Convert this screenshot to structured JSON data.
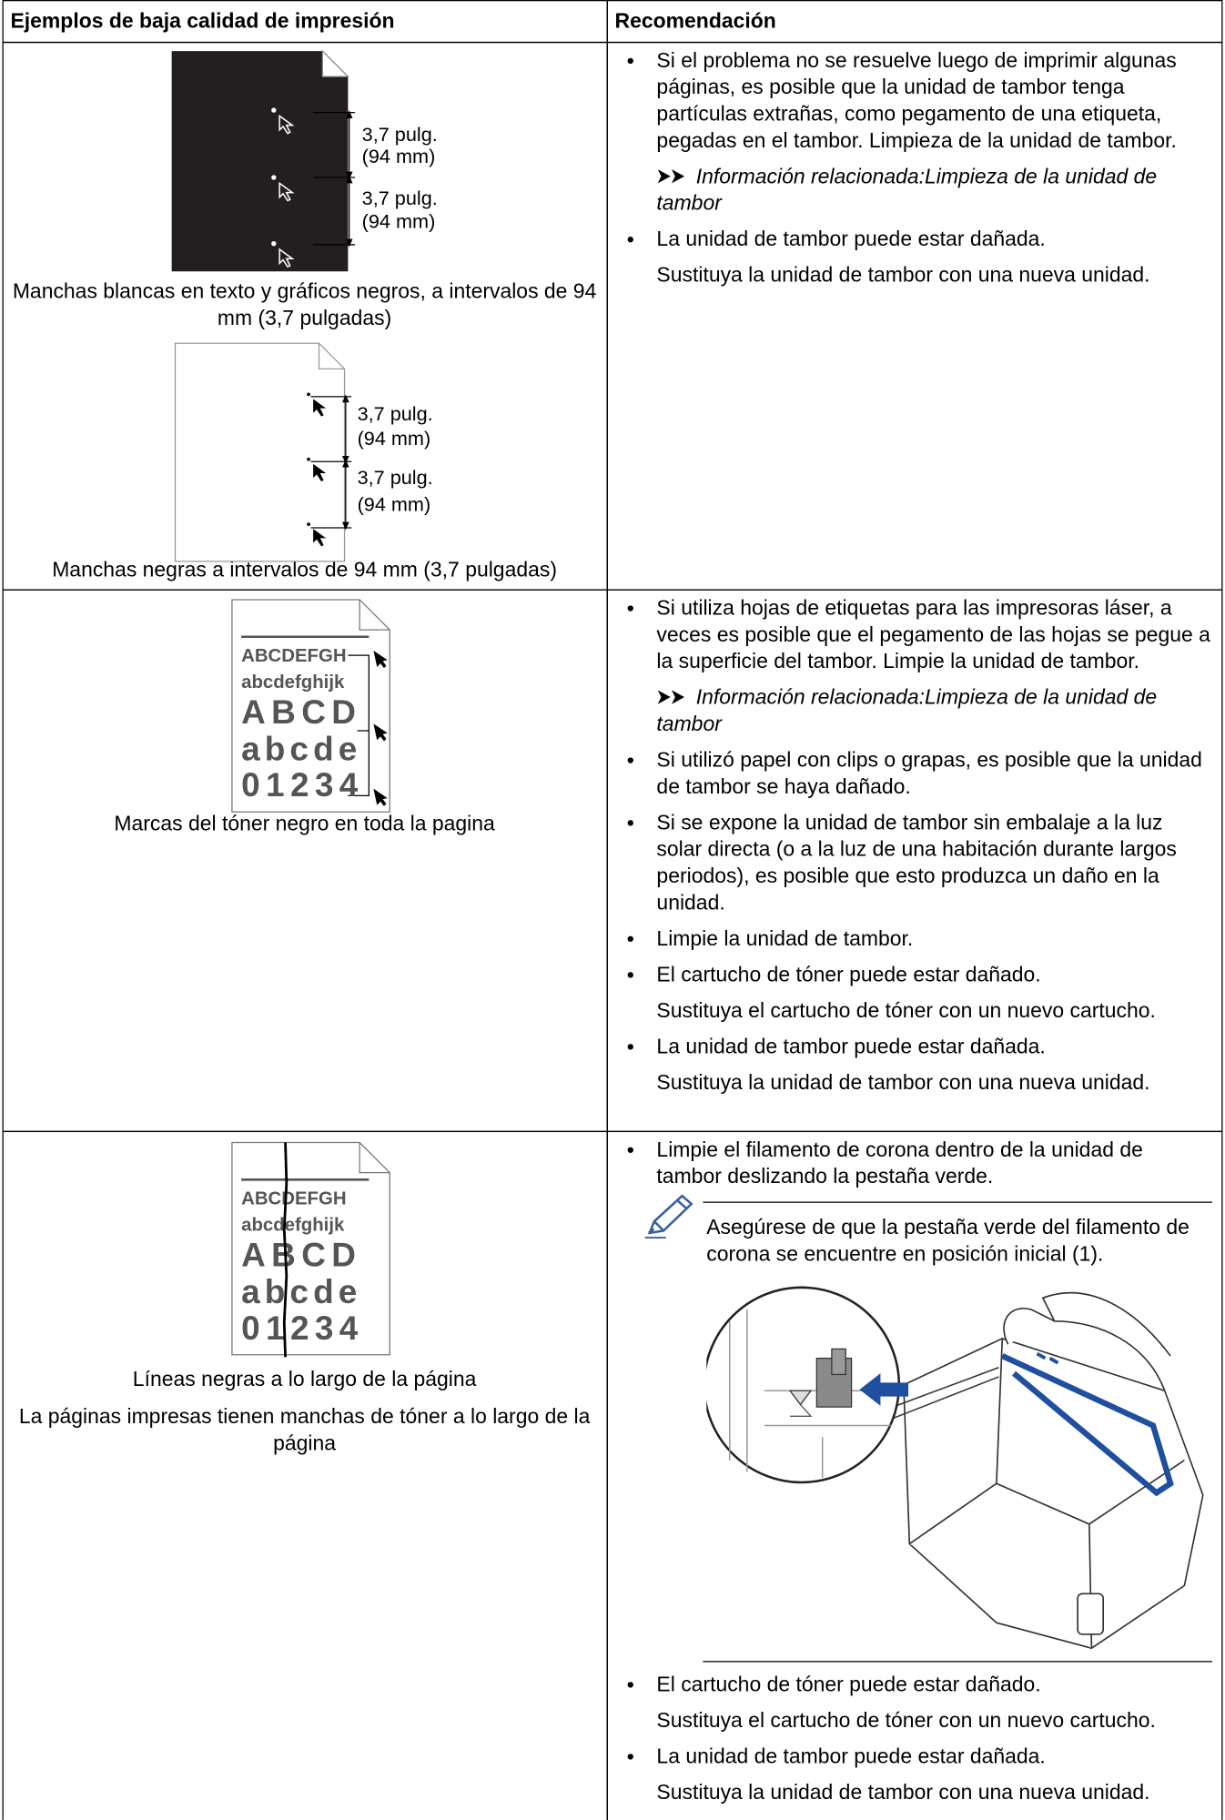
{
  "table": {
    "headers": [
      "Ejemplos de baja calidad de impresión",
      "Recomendación"
    ],
    "rows": [
      {
        "examples": [
          {
            "figure_labels": [
              "3,7 pulg.",
              "(94 mm)",
              "3,7 pulg.",
              "(94 mm)"
            ],
            "captions": [
              "Manchas blancas en texto y gráficos negros, a intervalos de 94 mm (3,7 pulgadas)"
            ]
          },
          {
            "figure_labels": [
              "3,7 pulg.",
              "(94 mm)",
              "3,7 pulg.",
              "(94 mm)"
            ],
            "captions": [
              "Manchas negras a intervalos de 94 mm (3,7 pulgadas)"
            ]
          }
        ],
        "recommendations": [
          {
            "text": "Si el problema no se resuelve luego de imprimir algunas páginas, es posible que la unidad de tambor tenga partículas extrañas, como pegamento de una etiqueta, pegadas en el tambor. Limpieza de la unidad de tambor.",
            "related": {
              "label": "Información relacionada:",
              "link": "Limpieza de la unidad de tambor"
            }
          },
          {
            "text": "La unidad de tambor puede estar dañada.",
            "details": [
              "Sustituya la unidad de tambor con una nueva unidad."
            ]
          }
        ]
      },
      {
        "examples": [
          {
            "figure_text": [
              "ABCDEFGH",
              "abcdefghijk",
              "ABCD",
              "abcde",
              "01234"
            ],
            "captions": [
              "Marcas del tóner negro en toda la pagina"
            ]
          }
        ],
        "recommendations": [
          {
            "text": "Si utiliza hojas de etiquetas para las impresoras láser, a veces es posible que el pegamento de las hojas se pegue a la superficie del tambor. Limpie la unidad de tambor.",
            "related": {
              "label": "Información relacionada:",
              "link": "Limpieza de la unidad de tambor"
            }
          },
          {
            "text": "Si utilizó papel con clips o grapas, es posible que la unidad de tambor se haya dañado."
          },
          {
            "text": "Si se expone la unidad de tambor sin embalaje a la luz solar directa (o a la luz de una habitación durante largos periodos), es posible que esto produzca un daño en la unidad."
          },
          {
            "text": "Limpie la unidad de tambor."
          },
          {
            "text": "El cartucho de tóner puede estar dañado.",
            "details": [
              "Sustituya el cartucho de tóner con un nuevo cartucho."
            ]
          },
          {
            "text": "La unidad de tambor puede estar dañada.",
            "details": [
              "Sustituya la unidad de tambor con una nueva unidad."
            ]
          }
        ]
      },
      {
        "examples": [
          {
            "figure_text": [
              "ABCDEFGH",
              "abcdefghijk",
              "ABCD",
              "abcde",
              "01234"
            ],
            "captions": [
              "Líneas negras a lo largo de la página",
              "La páginas impresas tienen manchas de tóner a lo largo de la página"
            ]
          }
        ],
        "recommendations": [
          {
            "text": "Limpie el filamento de corona dentro de la unidad de tambor deslizando la pestaña verde.",
            "note": "Asegúrese de que la pestaña verde del filamento de corona se encuentre en posición inicial (1)."
          },
          {
            "text": "El cartucho de tóner puede estar dañado.",
            "details": [
              "Sustituya el cartucho de tóner con un nuevo cartucho."
            ]
          },
          {
            "text": "La unidad de tambor puede estar dañada.",
            "details": [
              "Sustituya la unidad de tambor con una nueva unidad."
            ]
          }
        ]
      }
    ]
  }
}
